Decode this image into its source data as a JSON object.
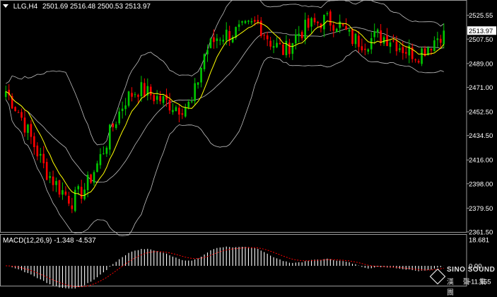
{
  "header": {
    "symbol_label": "LLG,H4",
    "ohlc": "2501.69 2516.48 2500.53 2513.97",
    "menu_icon": "triangle-down-icon"
  },
  "price_axis": {
    "ticks": [
      "2525.55",
      "2507.50",
      "2489.00",
      "2471.00",
      "2452.50",
      "2434.50",
      "2416.00",
      "2398.00",
      "2379.50",
      "2361.50"
    ],
    "current_price": "2513.97"
  },
  "macd": {
    "label": "MACD(12,26,9) -1.348 -4.537",
    "ticks": [
      "18.681",
      "0.00",
      "-11.155"
    ]
  },
  "watermark": {
    "brand": "SINO SOUND",
    "subtitle": "漢 聲 集 團"
  },
  "colors": {
    "background": "#000000",
    "bull": "#00c800",
    "bear": "#ff0000",
    "ma": "#ffff00",
    "bands": "#c0c0c0",
    "macd_hist": "#ffffff",
    "signal": "#ff0000",
    "current_price_bg": "#ffffff"
  },
  "chart_data": {
    "type": "candlestick",
    "timeframe": "H4",
    "ylim": [
      2361.5,
      2535
    ],
    "macd_ylim": [
      -11.155,
      18.681
    ],
    "anchor_closes": [
      2468,
      2452,
      2430,
      2408,
      2395,
      2385,
      2395,
      2415,
      2440,
      2462,
      2470,
      2465,
      2460,
      2456,
      2458,
      2498,
      2510,
      2512,
      2515,
      2520,
      2505,
      2498,
      2512,
      2518,
      2522,
      2520,
      2508,
      2505,
      2510,
      2508,
      2500,
      2496,
      2504,
      2514
    ]
  }
}
